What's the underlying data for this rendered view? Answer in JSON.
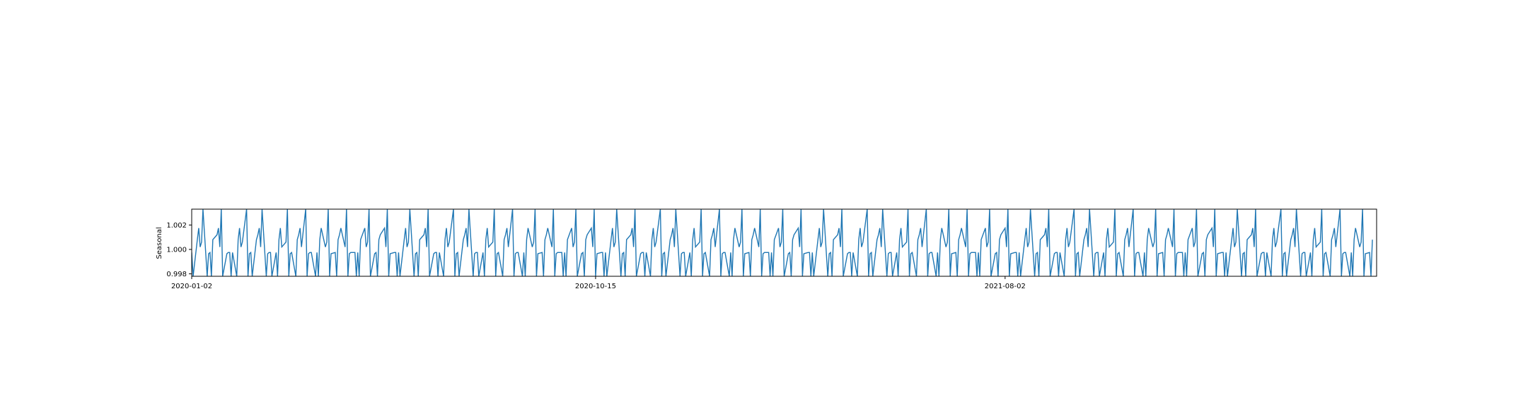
{
  "chart_data": {
    "type": "line",
    "title": "",
    "xlabel": "",
    "ylabel": "Seasonal",
    "line_color": "#1f77b4",
    "grid": false,
    "legend": false,
    "xlim": [
      "2020-01-02",
      "2022-04-23"
    ],
    "ylim": [
      0.9978,
      1.0033
    ],
    "x_ticks": [
      "2020-01-02",
      "2020-10-15",
      "2021-08-02"
    ],
    "y_ticks": [
      "0.998",
      "1.000",
      "1.002"
    ],
    "series": [
      {
        "x_start": "2020-01-02",
        "frequency": "business-day",
        "pattern_period": 21,
        "pattern": [
          0.99975,
          0.9978,
          1.0008,
          1.00175,
          1.0002,
          1.0006,
          1.0033,
          0.9978,
          0.99965,
          0.99975,
          0.9978,
          1.0008,
          1.0012,
          1.00175,
          1.0002,
          1.0033,
          0.9978,
          0.99965,
          0.99975,
          0.99975,
          0.9978
        ],
        "count": 600
      }
    ]
  }
}
